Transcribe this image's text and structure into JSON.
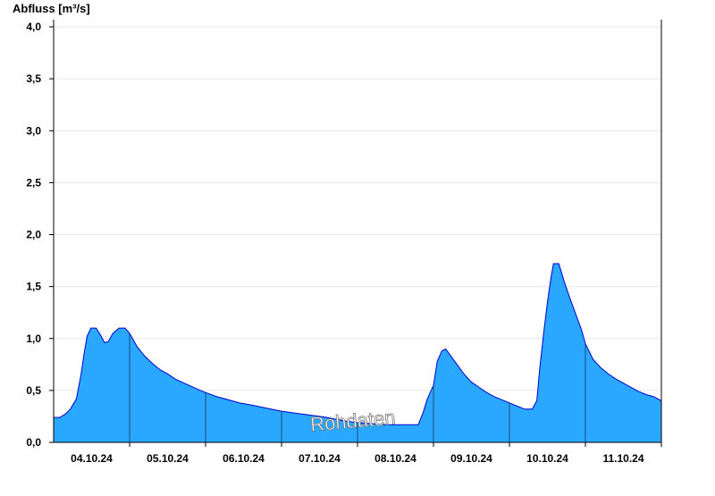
{
  "chart_data": {
    "type": "area",
    "ylabel": "Abfluss [m³/s]",
    "xlabel": "",
    "ylim": [
      0,
      4.0
    ],
    "y_ticks": [
      "0,0",
      "0,5",
      "1,0",
      "1,5",
      "2,0",
      "2,5",
      "3,0",
      "3,5",
      "4,0"
    ],
    "x_ticks": [
      "04.10.24",
      "05.10.24",
      "06.10.24",
      "07.10.24",
      "08.10.24",
      "09.10.24",
      "10.10.24",
      "11.10.24"
    ],
    "x_range_days": [
      0,
      8
    ],
    "grid": true,
    "watermark": "Rohdaten",
    "colors": {
      "fill": "#2aa8ff",
      "line": "#0000cc",
      "axis": "#000000",
      "grid": "#e6e6e6",
      "day_line": "#1a4a7a"
    },
    "series": [
      {
        "values": [
          [
            0.0,
            0.24
          ],
          [
            0.08,
            0.24
          ],
          [
            0.15,
            0.27
          ],
          [
            0.22,
            0.32
          ],
          [
            0.3,
            0.42
          ],
          [
            0.36,
            0.65
          ],
          [
            0.4,
            0.85
          ],
          [
            0.44,
            1.02
          ],
          [
            0.49,
            1.1
          ],
          [
            0.56,
            1.1
          ],
          [
            0.62,
            1.03
          ],
          [
            0.67,
            0.96
          ],
          [
            0.72,
            0.97
          ],
          [
            0.78,
            1.05
          ],
          [
            0.86,
            1.1
          ],
          [
            0.94,
            1.1
          ],
          [
            1.0,
            1.05
          ],
          [
            1.1,
            0.92
          ],
          [
            1.2,
            0.83
          ],
          [
            1.3,
            0.76
          ],
          [
            1.4,
            0.7
          ],
          [
            1.5,
            0.66
          ],
          [
            1.6,
            0.61
          ],
          [
            1.75,
            0.56
          ],
          [
            1.9,
            0.51
          ],
          [
            2.0,
            0.48
          ],
          [
            2.15,
            0.44
          ],
          [
            2.3,
            0.41
          ],
          [
            2.45,
            0.38
          ],
          [
            2.6,
            0.36
          ],
          [
            2.8,
            0.33
          ],
          [
            3.0,
            0.3
          ],
          [
            3.2,
            0.28
          ],
          [
            3.4,
            0.26
          ],
          [
            3.6,
            0.24
          ],
          [
            3.8,
            0.21
          ],
          [
            4.0,
            0.19
          ],
          [
            4.2,
            0.18
          ],
          [
            4.4,
            0.17
          ],
          [
            4.6,
            0.17
          ],
          [
            4.8,
            0.17
          ],
          [
            4.86,
            0.28
          ],
          [
            4.92,
            0.42
          ],
          [
            5.0,
            0.55
          ],
          [
            5.05,
            0.78
          ],
          [
            5.11,
            0.88
          ],
          [
            5.16,
            0.9
          ],
          [
            5.22,
            0.84
          ],
          [
            5.3,
            0.76
          ],
          [
            5.4,
            0.66
          ],
          [
            5.5,
            0.58
          ],
          [
            5.6,
            0.53
          ],
          [
            5.7,
            0.48
          ],
          [
            5.8,
            0.44
          ],
          [
            5.9,
            0.41
          ],
          [
            6.0,
            0.38
          ],
          [
            6.1,
            0.35
          ],
          [
            6.2,
            0.32
          ],
          [
            6.3,
            0.32
          ],
          [
            6.36,
            0.4
          ],
          [
            6.4,
            0.72
          ],
          [
            6.45,
            1.05
          ],
          [
            6.5,
            1.35
          ],
          [
            6.55,
            1.6
          ],
          [
            6.58,
            1.72
          ],
          [
            6.65,
            1.72
          ],
          [
            6.72,
            1.55
          ],
          [
            6.8,
            1.38
          ],
          [
            6.88,
            1.22
          ],
          [
            6.95,
            1.08
          ],
          [
            7.0,
            0.95
          ],
          [
            7.1,
            0.8
          ],
          [
            7.2,
            0.72
          ],
          [
            7.3,
            0.66
          ],
          [
            7.4,
            0.61
          ],
          [
            7.5,
            0.57
          ],
          [
            7.6,
            0.53
          ],
          [
            7.7,
            0.49
          ],
          [
            7.8,
            0.46
          ],
          [
            7.9,
            0.44
          ],
          [
            8.0,
            0.4
          ]
        ]
      }
    ]
  }
}
